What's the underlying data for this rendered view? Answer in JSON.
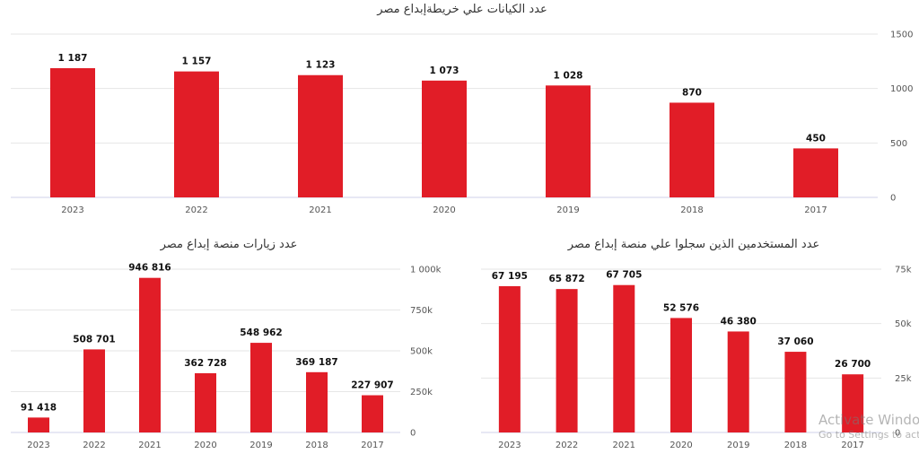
{
  "colors": {
    "bar": "#e11d27"
  },
  "chart_data": [
    {
      "type": "bar",
      "title": "عدد الكيانات علي خريطةإبداع مصر",
      "categories": [
        "2023",
        "2022",
        "2021",
        "2020",
        "2019",
        "2018",
        "2017"
      ],
      "values": [
        1187,
        1157,
        1123,
        1073,
        1028,
        870,
        450
      ],
      "value_labels": [
        "1 187",
        "1 157",
        "1 123",
        "1 073",
        "1 028",
        "870",
        "450"
      ],
      "ylim": [
        0,
        1500
      ],
      "yticks": [
        0,
        500,
        1000,
        1500
      ],
      "ytick_labels": [
        "0",
        "500",
        "1000",
        "1500"
      ],
      "yaxis_side": "right",
      "grid": true,
      "legend": "none"
    },
    {
      "type": "bar",
      "title": "عدد زيارات منصة إبداع مصر",
      "categories": [
        "2023",
        "2022",
        "2021",
        "2020",
        "2019",
        "2018",
        "2017"
      ],
      "values": [
        91418,
        508701,
        946816,
        362728,
        548962,
        369187,
        227907
      ],
      "value_labels": [
        "91 418",
        "508 701",
        "946 816",
        "362 728",
        "548 962",
        "369 187",
        "227 907"
      ],
      "ylim": [
        0,
        1000000
      ],
      "yticks": [
        0,
        250000,
        500000,
        750000,
        1000000
      ],
      "ytick_labels": [
        "0",
        "250k",
        "500k",
        "750k",
        "1 000k"
      ],
      "yaxis_side": "right",
      "grid": true,
      "legend": "none"
    },
    {
      "type": "bar",
      "title": "عدد المستخدمين الذين سجلوا علي منصة إبداع مصر",
      "categories": [
        "2023",
        "2022",
        "2021",
        "2020",
        "2019",
        "2018",
        "2017"
      ],
      "values": [
        67195,
        65872,
        67705,
        52576,
        46380,
        37060,
        26700
      ],
      "value_labels": [
        "67 195",
        "65 872",
        "67 705",
        "52 576",
        "46 380",
        "37 060",
        "26 700"
      ],
      "ylim": [
        0,
        75000
      ],
      "yticks": [
        0,
        25000,
        50000,
        75000
      ],
      "ytick_labels": [
        "0",
        "25k",
        "50k",
        "75k"
      ],
      "yaxis_side": "right",
      "grid": true,
      "legend": "none"
    }
  ],
  "watermark": {
    "title": "Activate Windows",
    "subtitle": "Go to Settings to activate Windows."
  }
}
